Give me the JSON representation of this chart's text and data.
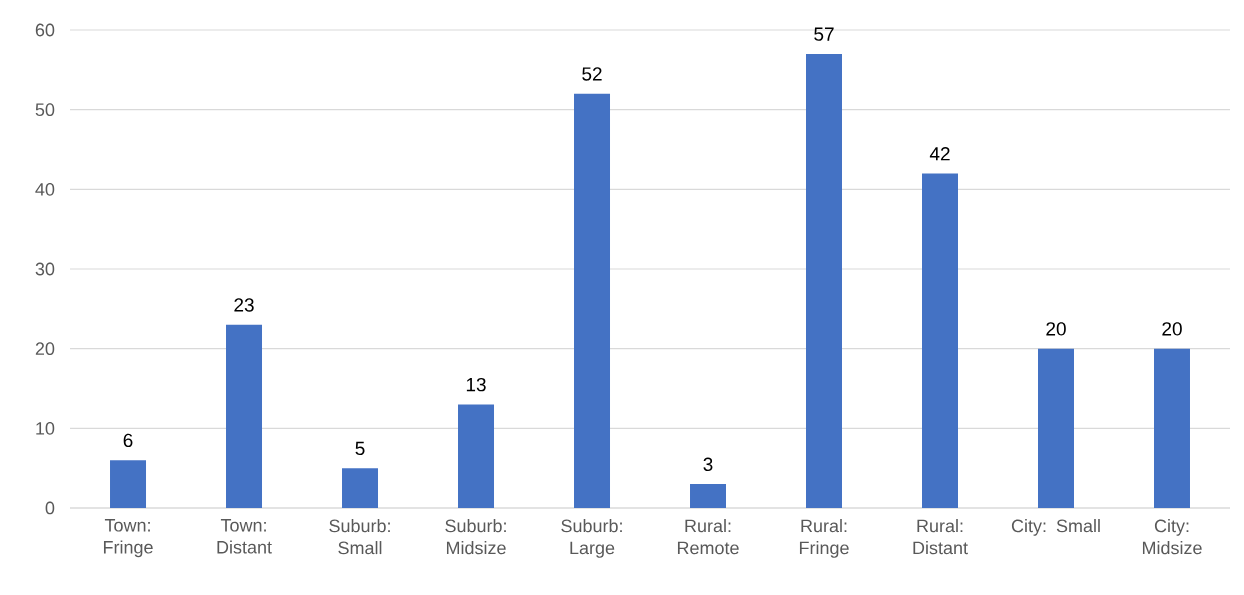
{
  "chart_data": {
    "type": "bar",
    "categories": [
      "Town: Fringe",
      "Town: Distant",
      "Suburb: Small",
      "Suburb: Midsize",
      "Suburb: Large",
      "Rural: Remote",
      "Rural: Fringe",
      "Rural: Distant",
      "City: Small",
      "City: Midsize"
    ],
    "values": [
      6,
      23,
      5,
      13,
      52,
      3,
      57,
      42,
      20,
      20
    ],
    "color": "#4472c4",
    "ylim": [
      0,
      60
    ],
    "yticks": [
      0,
      10,
      20,
      30,
      40,
      50,
      60
    ],
    "grid": "y",
    "data_labels": true
  }
}
